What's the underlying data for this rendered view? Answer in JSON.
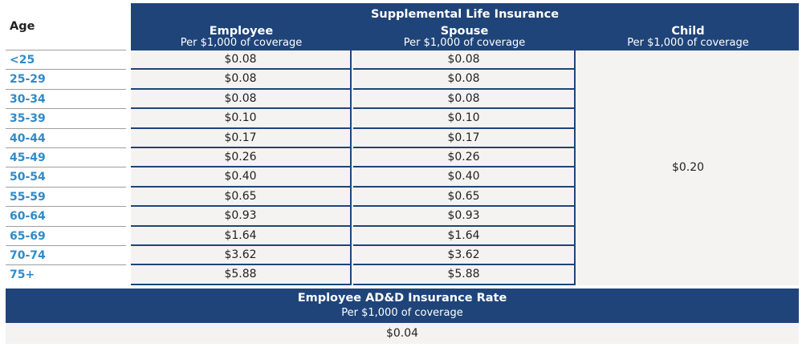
{
  "header": {
    "age": "Age",
    "supplemental_title": "Supplemental Life Insurance",
    "employee": "Employee",
    "employee_sub": "Per $1,000 of coverage",
    "spouse": "Spouse",
    "spouse_sub": "Per $1,000 of coverage",
    "child": "Child",
    "child_sub": "Per $1,000 of coverage"
  },
  "rows": [
    {
      "age": "<25",
      "employee": "$0.08",
      "spouse": "$0.08"
    },
    {
      "age": "25-29",
      "employee": "$0.08",
      "spouse": "$0.08"
    },
    {
      "age": "30-34",
      "employee": "$0.08",
      "spouse": "$0.08"
    },
    {
      "age": "35-39",
      "employee": "$0.10",
      "spouse": "$0.10"
    },
    {
      "age": "40-44",
      "employee": "$0.17",
      "spouse": "$0.17"
    },
    {
      "age": "45-49",
      "employee": "$0.26",
      "spouse": "$0.26"
    },
    {
      "age": "50-54",
      "employee": "$0.40",
      "spouse": "$0.40"
    },
    {
      "age": "55-59",
      "employee": "$0.65",
      "spouse": "$0.65"
    },
    {
      "age": "60-64",
      "employee": "$0.93",
      "spouse": "$0.93"
    },
    {
      "age": "65-69",
      "employee": "$1.64",
      "spouse": "$1.64"
    },
    {
      "age": "70-74",
      "employee": "$3.62",
      "spouse": "$3.62"
    },
    {
      "age": "75+",
      "employee": "$5.88",
      "spouse": "$5.88"
    }
  ],
  "child_rate": "$0.20",
  "add": {
    "title": "Employee AD&D Insurance Rate",
    "subtitle": "Per $1,000 of coverage",
    "rate": "$0.04"
  }
}
